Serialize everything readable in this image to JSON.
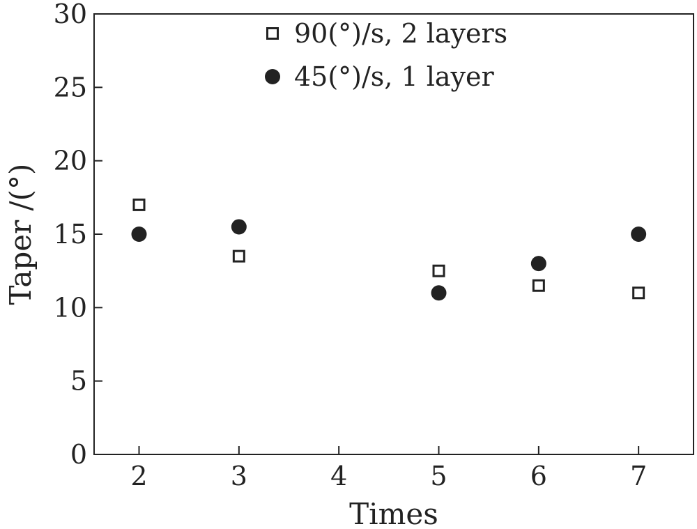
{
  "chart_data": {
    "type": "scatter",
    "xlabel": "Times",
    "ylabel": "Taper /(°)",
    "x_ticks": [
      2,
      3,
      4,
      5,
      6,
      7
    ],
    "y_ticks": [
      0,
      5,
      10,
      15,
      20,
      25,
      30
    ],
    "xlim": [
      1.55,
      7.55
    ],
    "ylim": [
      0,
      30
    ],
    "grid": false,
    "legend_position": "top-center",
    "series": [
      {
        "name": "90(°)/s, 2 layers",
        "marker": "open-square",
        "color": "#222222",
        "x": [
          2,
          3,
          5,
          6,
          7
        ],
        "y": [
          17,
          13.5,
          12.5,
          11.5,
          11
        ]
      },
      {
        "name": "45(°)/s, 1 layer",
        "marker": "filled-circle",
        "color": "#222222",
        "x": [
          2,
          3,
          5,
          6,
          7
        ],
        "y": [
          15,
          15.5,
          11,
          13,
          15
        ]
      }
    ]
  }
}
